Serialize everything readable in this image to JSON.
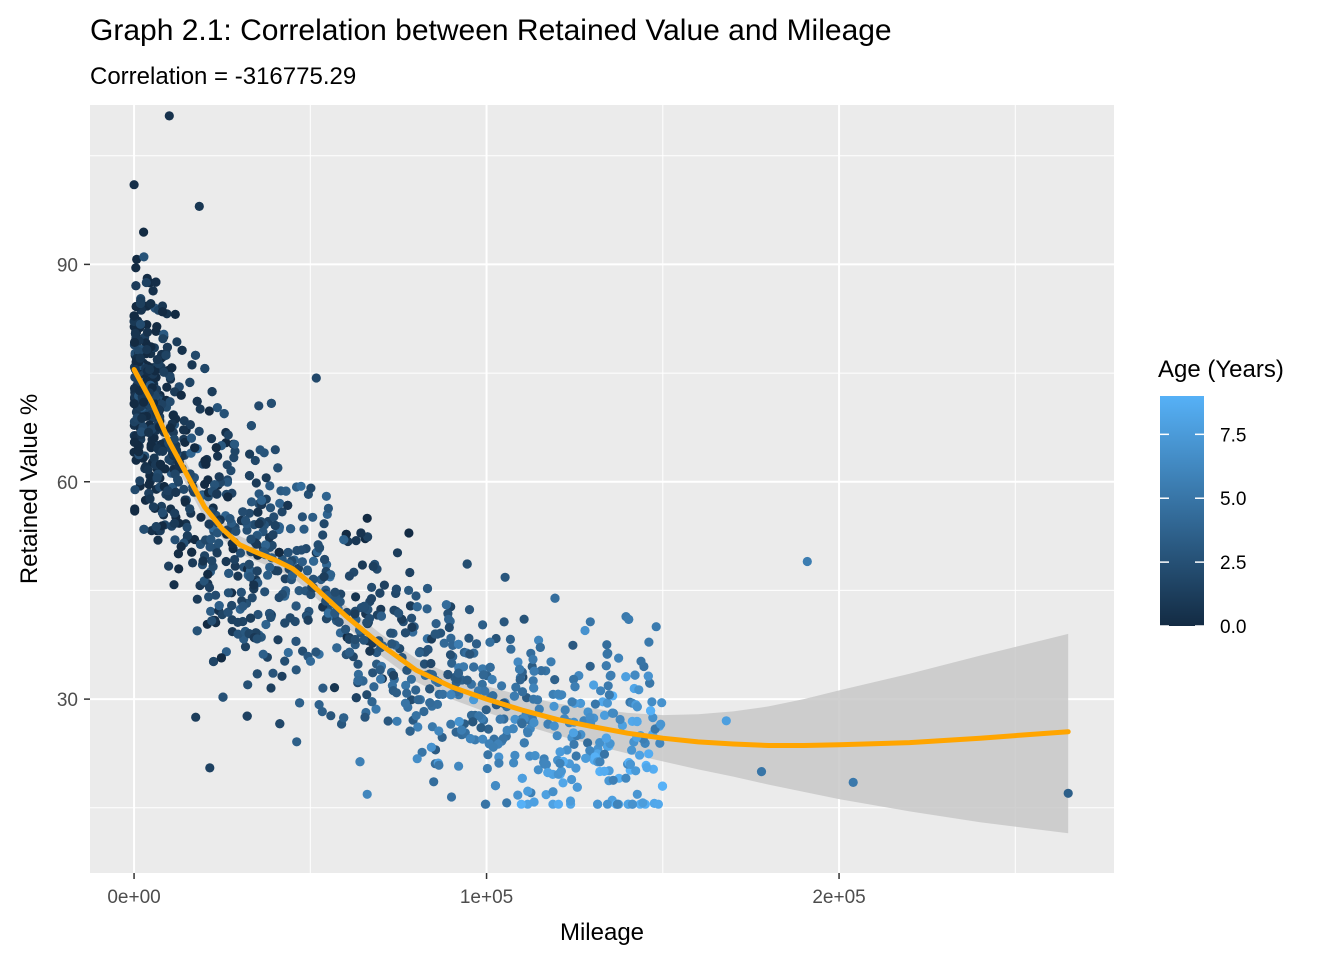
{
  "chart_data": {
    "type": "scatter",
    "title": "Graph 2.1: Correlation between Retained Value and Mileage",
    "subtitle": "Correlation = -316775.29",
    "xlabel": "Mileage",
    "ylabel": "Retained Value %",
    "xlim": [
      -12500,
      278000
    ],
    "ylim": [
      6,
      112
    ],
    "x_ticks": [
      0,
      100000,
      200000
    ],
    "x_tick_labels": [
      "0e+00",
      "1e+05",
      "2e+05"
    ],
    "y_ticks": [
      30,
      60,
      90
    ],
    "y_tick_labels": [
      "30",
      "60",
      "90"
    ],
    "grid": true,
    "colors": {
      "panel_background": "#ebebeb",
      "grid": "#ffffff",
      "smooth_line": "#ffa500",
      "confidence_band": "#c8c8c8",
      "age_low": "#132b43",
      "age_high": "#56b1f7"
    },
    "legend": {
      "title": "Age (Years)",
      "placement": "right",
      "type": "colorbar",
      "min": 0,
      "max": 9,
      "ticks": [
        0,
        2.5,
        5,
        7.5
      ],
      "tick_labels": [
        "0.0",
        "2.5",
        "5.0",
        "7.5"
      ]
    },
    "smooth": {
      "x": [
        0,
        5000,
        10000,
        15000,
        20000,
        25000,
        30000,
        35000,
        40000,
        45000,
        50000,
        60000,
        70000,
        80000,
        90000,
        100000,
        110000,
        120000,
        130000,
        140000,
        150000,
        160000,
        170000,
        180000,
        190000,
        200000,
        220000,
        240000,
        265000
      ],
      "y": [
        75.5,
        71,
        65.5,
        61,
        56.5,
        53.5,
        51.3,
        50.2,
        49.2,
        48,
        46,
        41.5,
        37.5,
        34,
        31.7,
        30,
        28.5,
        27.2,
        26.2,
        25.3,
        24.6,
        24.1,
        23.8,
        23.6,
        23.6,
        23.7,
        24,
        24.6,
        25.5
      ],
      "upper": [
        78,
        73,
        67.3,
        62.5,
        58,
        54.8,
        52.5,
        51.4,
        50.4,
        49.2,
        47.3,
        42.9,
        39,
        35.6,
        33.4,
        31.8,
        30.5,
        29.4,
        28.7,
        28.1,
        27.8,
        27.9,
        28.3,
        29,
        30,
        31.2,
        33.5,
        36,
        39
      ],
      "lower": [
        73,
        69,
        63.7,
        59.5,
        55,
        52.2,
        50.1,
        49,
        48,
        46.8,
        44.7,
        40.1,
        36,
        32.4,
        30,
        28.2,
        26.5,
        25,
        23.7,
        22.5,
        21.4,
        20.3,
        19.3,
        18.2,
        17.2,
        16.2,
        14.5,
        13,
        11.5
      ]
    },
    "highlighted_points": [
      {
        "x": 10000,
        "y": 110.5,
        "age": 0.5
      },
      {
        "x": 0,
        "y": 101,
        "age": 0.3
      },
      {
        "x": 18500,
        "y": 98,
        "age": 0.8
      },
      {
        "x": 191000,
        "y": 49,
        "age": 5.5
      },
      {
        "x": 265000,
        "y": 17,
        "age": 3.5
      },
      {
        "x": 204000,
        "y": 18.5,
        "age": 5.2
      },
      {
        "x": 178000,
        "y": 20,
        "age": 5.0
      },
      {
        "x": 168000,
        "y": 27,
        "age": 7.8
      },
      {
        "x": 21500,
        "y": 20.5,
        "age": 1.5
      },
      {
        "x": 17500,
        "y": 27.5,
        "age": 1.2
      }
    ],
    "points_note": "approximately 1500 individual observations, concentrated between 0 and 150000 miles"
  }
}
